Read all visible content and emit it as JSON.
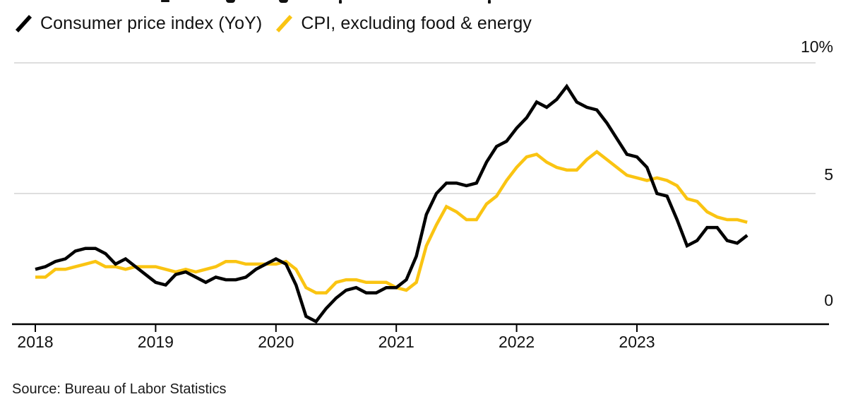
{
  "legend": {
    "items": [
      {
        "label": "Consumer price index (YoY)",
        "color": "#000000"
      },
      {
        "label": "CPI, excluding food & energy",
        "color": "#FAC412"
      }
    ]
  },
  "source": "Source: Bureau of Labor Statistics",
  "chart_data": {
    "type": "line",
    "title": "(title clipped out of frame)",
    "x_unit": "month",
    "x_start": "2018-01",
    "x_end": "2023-12",
    "n_points": 72,
    "x_tick_labels": [
      "2018",
      "2019",
      "2020",
      "2021",
      "2022",
      "2023"
    ],
    "y_tick_labels": [
      "10%",
      "5",
      "0"
    ],
    "ylim": [
      0,
      10
    ],
    "gridlines_at": [
      10,
      5
    ],
    "grid": "horizontal",
    "legend_position": "top-left",
    "axis_color": "#000000",
    "gridline_color": "#DEDEDE",
    "series": [
      {
        "name": "Consumer price index (YoY)",
        "color": "#000000",
        "values": [
          2.1,
          2.2,
          2.4,
          2.5,
          2.8,
          2.9,
          2.9,
          2.7,
          2.3,
          2.5,
          2.2,
          1.9,
          1.6,
          1.5,
          1.9,
          2.0,
          1.8,
          1.6,
          1.8,
          1.7,
          1.7,
          1.8,
          2.1,
          2.3,
          2.5,
          2.3,
          1.5,
          0.3,
          0.1,
          0.6,
          1.0,
          1.3,
          1.4,
          1.2,
          1.2,
          1.4,
          1.4,
          1.7,
          2.6,
          4.2,
          5.0,
          5.4,
          5.4,
          5.3,
          5.4,
          6.2,
          6.8,
          7.0,
          7.5,
          7.9,
          8.5,
          8.3,
          8.6,
          9.1,
          8.5,
          8.3,
          8.2,
          7.7,
          7.1,
          6.5,
          6.4,
          6.0,
          5.0,
          4.9,
          4.0,
          3.0,
          3.2,
          3.7,
          3.7,
          3.2,
          3.1,
          3.4
        ]
      },
      {
        "name": "CPI, excluding food & energy",
        "color": "#FAC412",
        "values": [
          1.8,
          1.8,
          2.1,
          2.1,
          2.2,
          2.3,
          2.4,
          2.2,
          2.2,
          2.1,
          2.2,
          2.2,
          2.2,
          2.1,
          2.0,
          2.1,
          2.0,
          2.1,
          2.2,
          2.4,
          2.4,
          2.3,
          2.3,
          2.3,
          2.3,
          2.4,
          2.1,
          1.4,
          1.2,
          1.2,
          1.6,
          1.7,
          1.7,
          1.6,
          1.6,
          1.6,
          1.4,
          1.3,
          1.6,
          3.0,
          3.8,
          4.5,
          4.3,
          4.0,
          4.0,
          4.6,
          4.9,
          5.5,
          6.0,
          6.4,
          6.5,
          6.2,
          6.0,
          5.9,
          5.9,
          6.3,
          6.6,
          6.3,
          6.0,
          5.7,
          5.6,
          5.5,
          5.6,
          5.5,
          5.3,
          4.8,
          4.7,
          4.3,
          4.1,
          4.0,
          4.0,
          3.9
        ]
      }
    ]
  }
}
